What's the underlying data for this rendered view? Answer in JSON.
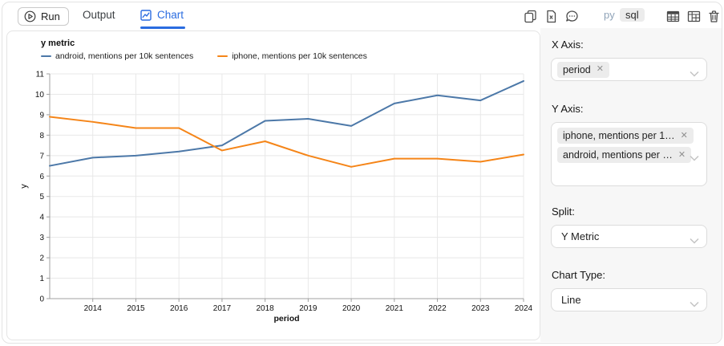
{
  "toolbar": {
    "run_label": "Run",
    "tabs": [
      {
        "label": "Output",
        "active": false
      },
      {
        "label": "Chart",
        "active": true
      }
    ],
    "lang_toggle": {
      "py_label": "py",
      "sql_label": "sql",
      "selected": "sql"
    },
    "accent_color": "#2a6ce0"
  },
  "chart_data": {
    "type": "line",
    "title": "y metric",
    "xlabel": "period",
    "ylabel": "y",
    "x": [
      2013,
      2014,
      2015,
      2016,
      2017,
      2018,
      2019,
      2020,
      2021,
      2022,
      2023,
      2024
    ],
    "x_tick_labels": [
      "2014",
      "2015",
      "2016",
      "2017",
      "2018",
      "2019",
      "2020",
      "2021",
      "2022",
      "2023",
      "2024"
    ],
    "ylim": [
      0,
      11
    ],
    "y_ticks": [
      0,
      1,
      2,
      3,
      4,
      5,
      6,
      7,
      8,
      9,
      10,
      11
    ],
    "grid": true,
    "legend_position": "top-left",
    "series": [
      {
        "name": "android, mentions per 10k sentences",
        "color": "#4c78a8",
        "values": [
          6.5,
          6.9,
          7.0,
          7.2,
          7.5,
          8.7,
          8.8,
          8.45,
          9.55,
          9.95,
          9.7,
          10.65
        ]
      },
      {
        "name": "iphone, mentions per 10k sentences",
        "color": "#f58518",
        "values": [
          8.9,
          8.65,
          8.35,
          8.35,
          7.25,
          7.7,
          7.0,
          6.45,
          6.85,
          6.85,
          6.7,
          7.05
        ]
      }
    ]
  },
  "config_panel": {
    "x_axis": {
      "label": "X Axis:",
      "tags": [
        "period"
      ]
    },
    "y_axis": {
      "label": "Y Axis:",
      "tags": [
        "iphone, mentions per 1…",
        "android, mentions per …"
      ]
    },
    "split": {
      "label": "Split:",
      "value": "Y Metric"
    },
    "chart_type": {
      "label": "Chart Type:",
      "value": "Line"
    }
  }
}
